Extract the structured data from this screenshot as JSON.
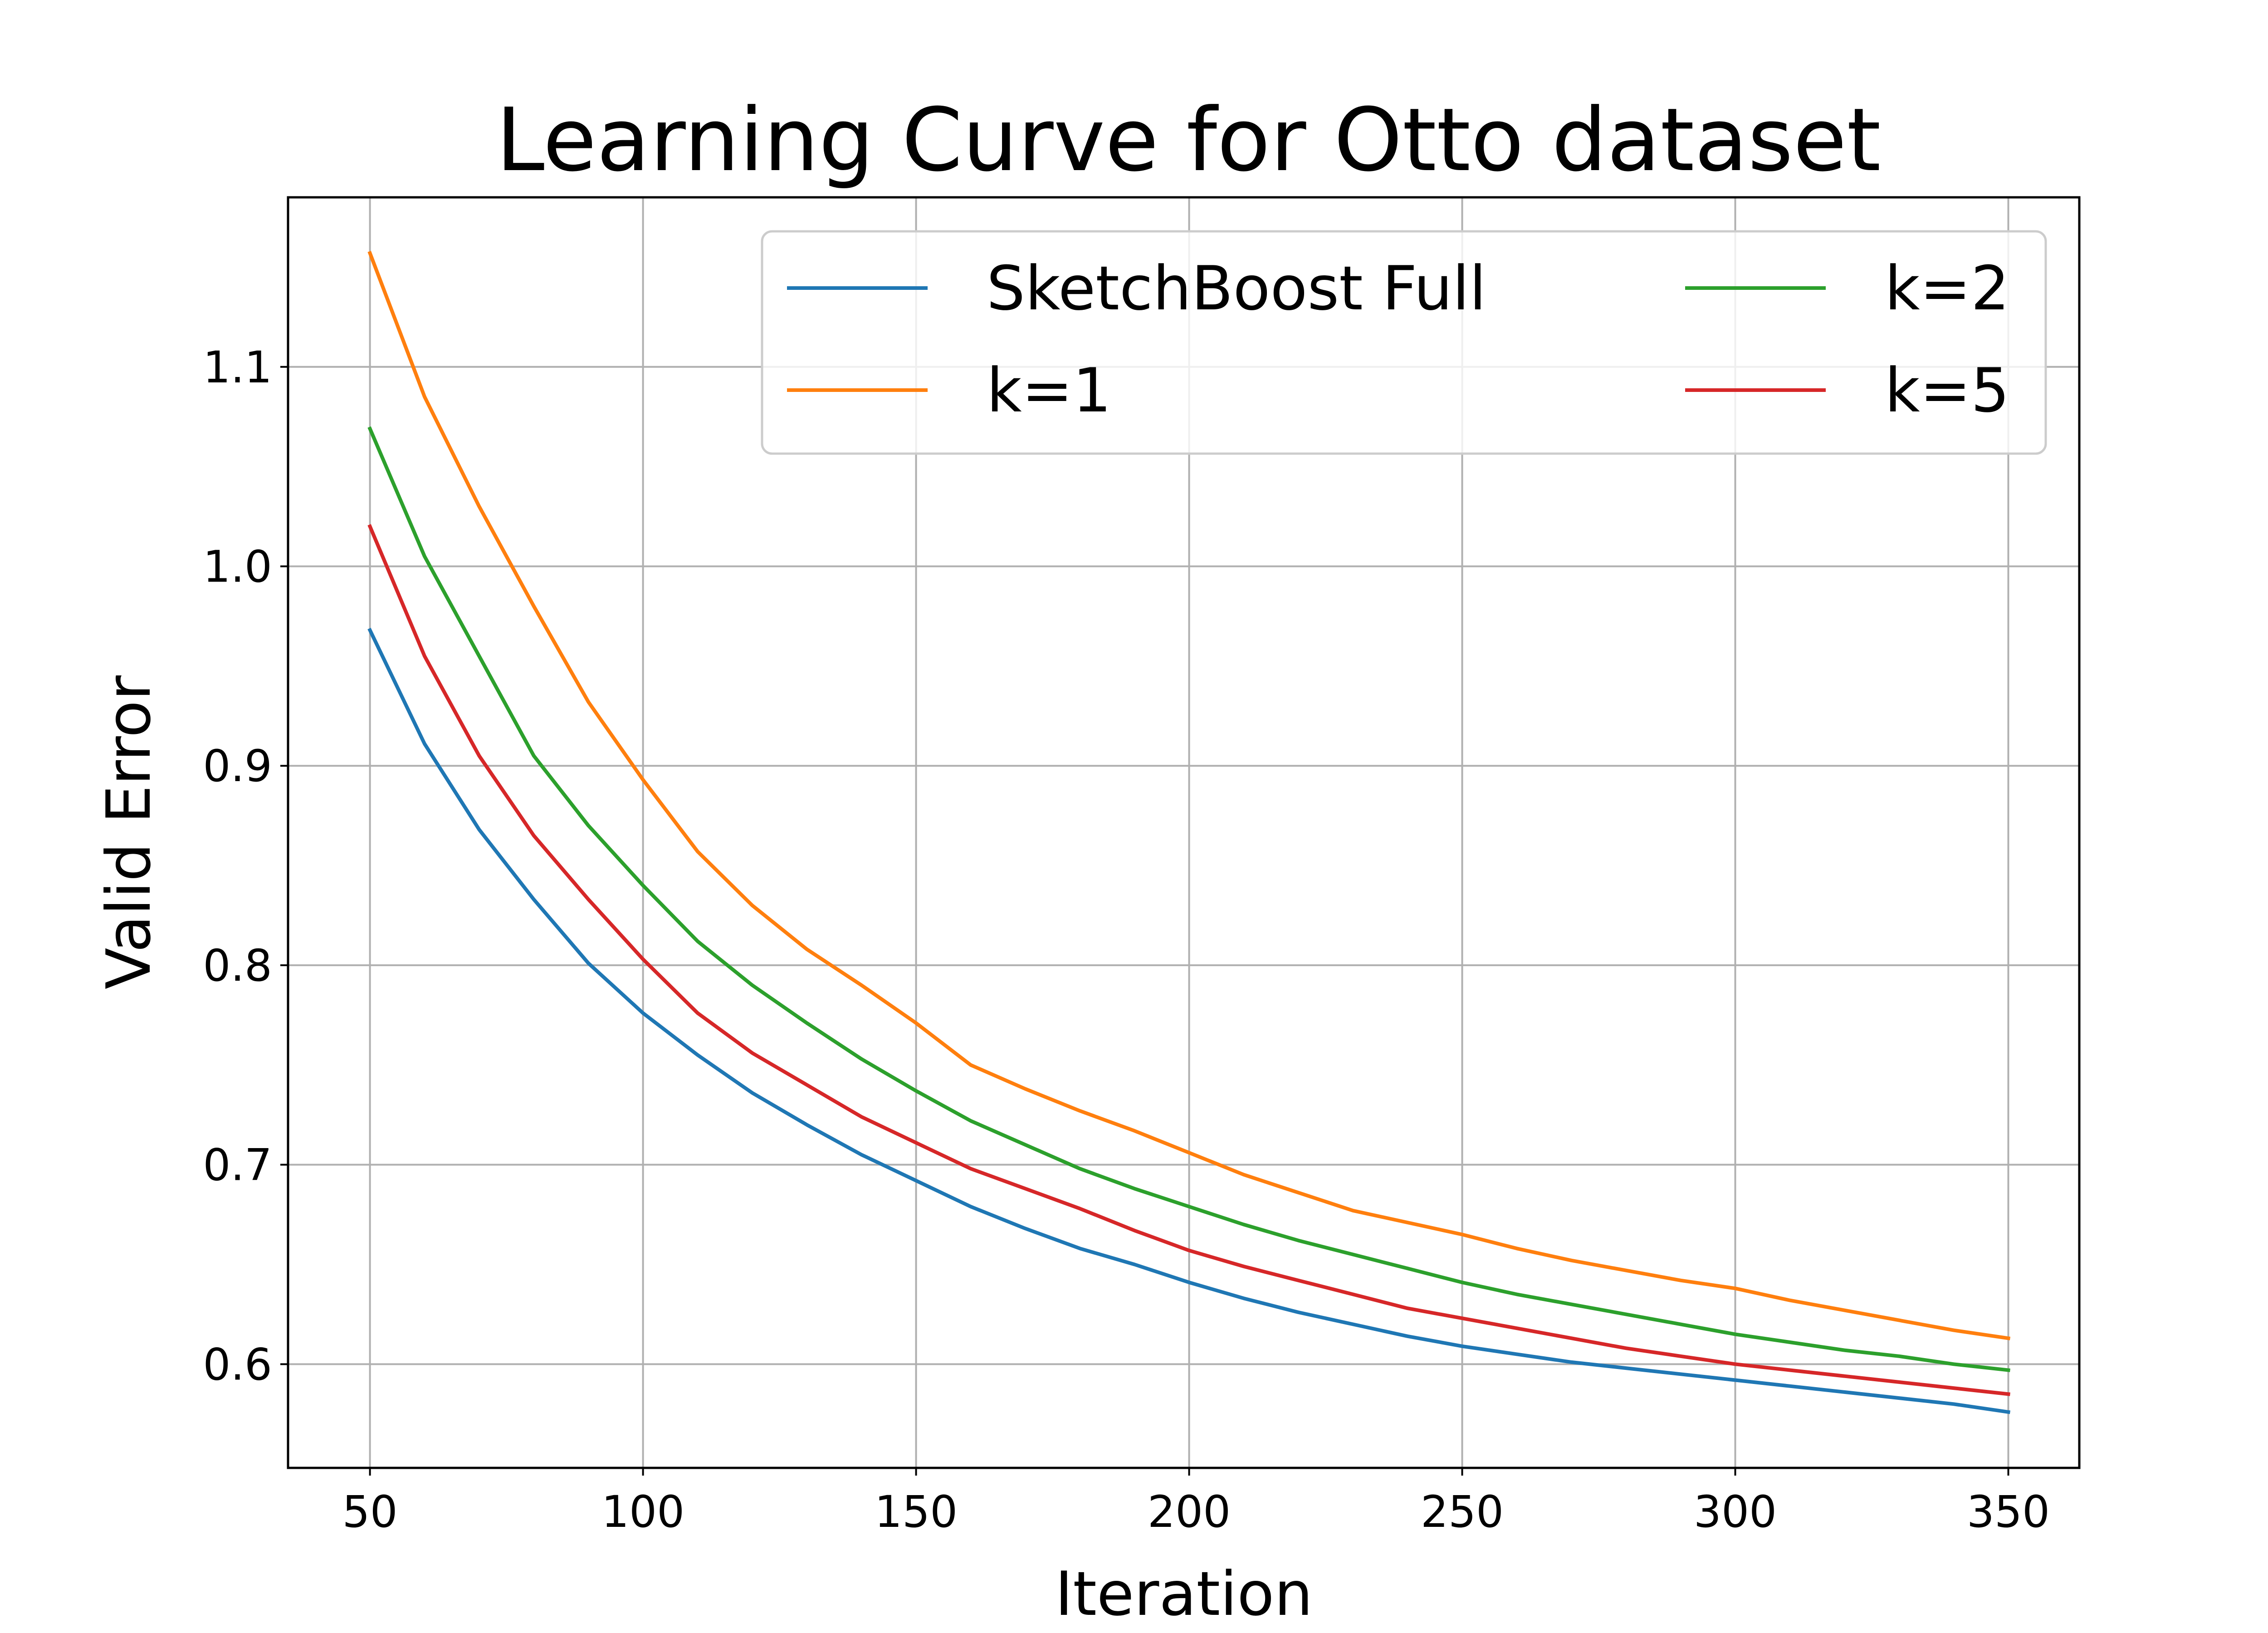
{
  "chart_data": {
    "type": "line",
    "title": "Learning Curve for Otto dataset",
    "xlabel": "Iteration",
    "ylabel": "Valid Error",
    "xlim": [
      35,
      363
    ],
    "ylim": [
      0.548,
      1.185
    ],
    "xticks": [
      50,
      100,
      150,
      200,
      250,
      300,
      350
    ],
    "yticks": [
      0.6,
      0.7,
      0.8,
      0.9,
      1.0,
      1.1
    ],
    "ytick_labels": [
      "0.6",
      "0.7",
      "0.8",
      "0.9",
      "1.0",
      "1.1"
    ],
    "grid": true,
    "legend_placement": "upper right",
    "x": [
      50,
      60,
      70,
      80,
      90,
      100,
      110,
      120,
      130,
      140,
      150,
      160,
      170,
      180,
      190,
      200,
      210,
      220,
      230,
      240,
      250,
      260,
      270,
      280,
      290,
      300,
      310,
      320,
      330,
      340,
      350
    ],
    "series": [
      {
        "name": "SketchBoost Full",
        "color": "#1f77b4",
        "values": [
          0.968,
          0.911,
          0.868,
          0.833,
          0.801,
          0.776,
          0.755,
          0.736,
          0.72,
          0.705,
          0.692,
          0.679,
          0.668,
          0.658,
          0.65,
          0.641,
          0.633,
          0.626,
          0.62,
          0.614,
          0.609,
          0.605,
          0.601,
          0.598,
          0.595,
          0.592,
          0.589,
          0.586,
          0.583,
          0.58,
          0.576
        ]
      },
      {
        "name": "k=1",
        "color": "#ff7f0e",
        "values": [
          1.157,
          1.085,
          1.03,
          0.98,
          0.932,
          0.893,
          0.857,
          0.83,
          0.808,
          0.79,
          0.771,
          0.75,
          0.738,
          0.727,
          0.717,
          0.706,
          0.695,
          0.686,
          0.677,
          0.671,
          0.665,
          0.658,
          0.652,
          0.647,
          0.642,
          0.638,
          0.632,
          0.627,
          0.622,
          0.617,
          0.613
        ]
      },
      {
        "name": "k=2",
        "color": "#2ca02c",
        "values": [
          1.069,
          1.005,
          0.955,
          0.905,
          0.87,
          0.84,
          0.812,
          0.79,
          0.771,
          0.753,
          0.737,
          0.722,
          0.71,
          0.698,
          0.688,
          0.679,
          0.67,
          0.662,
          0.655,
          0.648,
          0.641,
          0.635,
          0.63,
          0.625,
          0.62,
          0.615,
          0.611,
          0.607,
          0.604,
          0.6,
          0.597
        ]
      },
      {
        "name": "k=5",
        "color": "#d62728",
        "values": [
          1.02,
          0.955,
          0.905,
          0.865,
          0.833,
          0.803,
          0.776,
          0.756,
          0.74,
          0.724,
          0.711,
          0.698,
          0.688,
          0.678,
          0.667,
          0.657,
          0.649,
          0.642,
          0.635,
          0.628,
          0.623,
          0.618,
          0.613,
          0.608,
          0.604,
          0.6,
          0.597,
          0.594,
          0.591,
          0.588,
          0.585
        ]
      }
    ]
  }
}
